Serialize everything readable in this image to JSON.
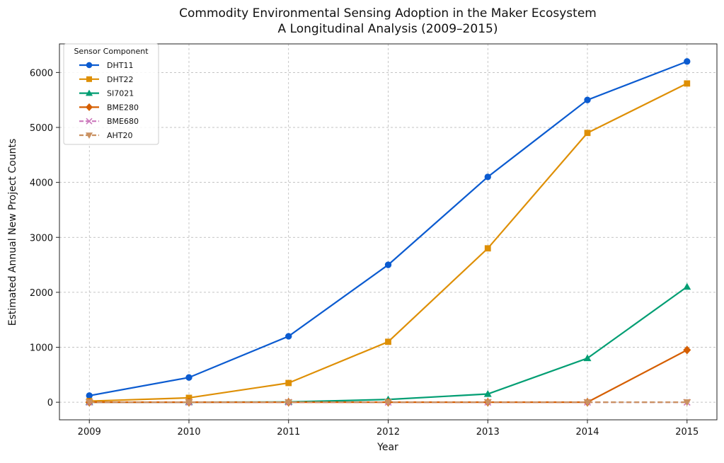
{
  "chart_data": {
    "type": "line",
    "title": "Commodity Environmental Sensing Adoption in the Maker Ecosystem",
    "subtitle": "A Longitudinal Analysis (2009–2015)",
    "xlabel": "Year",
    "ylabel": "Estimated Annual New Project Counts",
    "x": [
      2009,
      2010,
      2011,
      2012,
      2013,
      2014,
      2015
    ],
    "xticks": [
      "2009",
      "2010",
      "2011",
      "2012",
      "2013",
      "2014",
      "2015"
    ],
    "yticks": [
      "0",
      "1000",
      "2000",
      "3000",
      "4000",
      "5000",
      "6000"
    ],
    "ylim": [
      -320,
      6520
    ],
    "xlim": [
      2008.7,
      2015.3
    ],
    "grid": true,
    "legend": {
      "title": "Sensor Component",
      "placement": "top-left"
    },
    "series": [
      {
        "name": "DHT11",
        "values": [
          120,
          450,
          1200,
          2500,
          4100,
          5500,
          6200
        ],
        "color": "#0b5bd0",
        "marker": "circle",
        "dash": false
      },
      {
        "name": "DHT22",
        "values": [
          20,
          80,
          350,
          1100,
          2800,
          4900,
          5800
        ],
        "color": "#de8f05",
        "marker": "square",
        "dash": false
      },
      {
        "name": "SI7021",
        "values": [
          0,
          0,
          5,
          50,
          150,
          800,
          2100
        ],
        "color": "#029e73",
        "marker": "triangle",
        "dash": false
      },
      {
        "name": "BME280",
        "values": [
          0,
          0,
          0,
          0,
          0,
          0,
          950
        ],
        "color": "#d55e00",
        "marker": "diamond",
        "dash": false
      },
      {
        "name": "BME680",
        "values": [
          0,
          0,
          0,
          0,
          0,
          0,
          0
        ],
        "color": "#cc78bc",
        "marker": "x",
        "dash": true
      },
      {
        "name": "AHT20",
        "values": [
          0,
          0,
          0,
          0,
          0,
          0,
          0
        ],
        "color": "#ca9161",
        "marker": "triangle-down",
        "dash": true
      }
    ]
  }
}
